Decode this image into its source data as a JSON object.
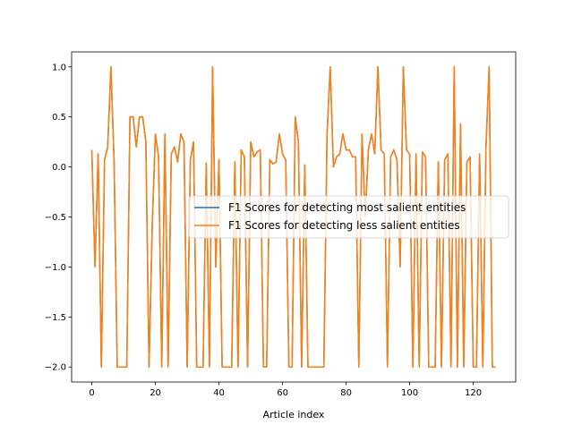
{
  "chart_data": {
    "type": "line",
    "title": "",
    "xlabel": "Article index",
    "ylabel": "",
    "xlim": [
      -6.35,
      133.35
    ],
    "ylim": [
      -2.15,
      1.15
    ],
    "xticks": [
      0,
      20,
      40,
      60,
      80,
      100,
      120
    ],
    "yticks": [
      -2.0,
      -1.5,
      -1.0,
      -0.5,
      0.0,
      0.5,
      1.0
    ],
    "ytick_labels": [
      "−2.0",
      "−1.5",
      "−1.0",
      "−0.5",
      "0.0",
      "0.5",
      "1.0"
    ],
    "grid": false,
    "legend_position": "center-right",
    "x": [
      0,
      1,
      2,
      3,
      4,
      5,
      6,
      7,
      8,
      9,
      10,
      11,
      12,
      13,
      14,
      15,
      16,
      17,
      18,
      19,
      20,
      21,
      22,
      23,
      24,
      25,
      26,
      27,
      28,
      29,
      30,
      31,
      32,
      33,
      34,
      35,
      36,
      37,
      38,
      39,
      40,
      41,
      42,
      43,
      44,
      45,
      46,
      47,
      48,
      49,
      50,
      51,
      52,
      53,
      54,
      55,
      56,
      57,
      58,
      59,
      60,
      61,
      62,
      63,
      64,
      65,
      66,
      67,
      68,
      69,
      70,
      71,
      72,
      73,
      74,
      75,
      76,
      77,
      78,
      79,
      80,
      81,
      82,
      83,
      84,
      85,
      86,
      87,
      88,
      89,
      90,
      91,
      92,
      93,
      94,
      95,
      96,
      97,
      98,
      99,
      100,
      101,
      102,
      103,
      104,
      105,
      106,
      107,
      108,
      109,
      110,
      111,
      112,
      113,
      114,
      115,
      116,
      117,
      118,
      119,
      120,
      121,
      122,
      123,
      124,
      125,
      126,
      127
    ],
    "series": [
      {
        "name": "F1 Scores for detecting most salient entities",
        "color": "#1f77b4",
        "values": [
          0.17,
          -1.0,
          0.13,
          -2.0,
          0.07,
          0.2,
          1.0,
          0.07,
          -2.0,
          -2.0,
          -2.0,
          -2.0,
          0.5,
          0.5,
          0.2,
          0.5,
          0.5,
          0.25,
          -2.0,
          -0.6,
          0.33,
          0.1,
          -2.0,
          0.33,
          -2.0,
          0.13,
          0.2,
          0.05,
          0.33,
          0.25,
          -2.0,
          0.07,
          0.25,
          -2.0,
          -2.0,
          -2.0,
          0.04,
          -2.0,
          1.0,
          -1.0,
          0.07,
          -2.0,
          -2.0,
          -2.0,
          -2.0,
          0.05,
          -2.0,
          0.17,
          0.1,
          -2.0,
          0.25,
          0.1,
          0.15,
          0.17,
          -2.0,
          -2.0,
          0.07,
          0.03,
          0.05,
          0.33,
          0.13,
          0.07,
          -2.0,
          -2.0,
          0.5,
          0.25,
          -2.0,
          0.02,
          -2.0,
          -2.0,
          -2.0,
          -2.0,
          -2.0,
          -2.0,
          0.33,
          1.0,
          0.0,
          0.1,
          0.13,
          0.33,
          0.17,
          0.17,
          0.1,
          0.1,
          -2.0,
          0.33,
          -0.5,
          0.17,
          0.33,
          0.13,
          1.0,
          0.17,
          0.13,
          -2.0,
          0.1,
          0.17,
          0.07,
          -1.0,
          1.0,
          0.17,
          0.13,
          -2.0,
          0.13,
          -2.0,
          0.15,
          0.1,
          -2.0,
          -2.0,
          -2.0,
          0.05,
          -2.0,
          0.07,
          0.13,
          -2.0,
          1.0,
          -2.0,
          0.43,
          -2.0,
          0.05,
          0.1,
          -2.0,
          -2.0,
          0.13,
          -2.0,
          0.2,
          1.0,
          -2.0,
          -2.0
        ]
      },
      {
        "name": "F1 Scores for detecting less salient entities",
        "color": "#ff7f0e",
        "values": [
          0.17,
          -1.0,
          0.13,
          -2.0,
          0.07,
          0.2,
          1.0,
          0.07,
          -2.0,
          -2.0,
          -2.0,
          -2.0,
          0.5,
          0.5,
          0.2,
          0.5,
          0.5,
          0.25,
          -2.0,
          -0.6,
          0.33,
          0.1,
          -2.0,
          0.33,
          -2.0,
          0.13,
          0.2,
          0.05,
          0.33,
          0.25,
          -2.0,
          0.07,
          0.25,
          -2.0,
          -2.0,
          -2.0,
          0.04,
          -2.0,
          1.0,
          -1.0,
          0.07,
          -2.0,
          -2.0,
          -2.0,
          -2.0,
          0.05,
          -2.0,
          0.17,
          0.1,
          -2.0,
          0.25,
          0.1,
          0.15,
          0.17,
          -2.0,
          -2.0,
          0.07,
          0.03,
          0.05,
          0.33,
          0.13,
          0.07,
          -2.0,
          -2.0,
          0.5,
          0.25,
          -2.0,
          0.02,
          -2.0,
          -2.0,
          -2.0,
          -2.0,
          -2.0,
          -2.0,
          0.33,
          1.0,
          0.0,
          0.1,
          0.13,
          0.33,
          0.17,
          0.17,
          0.1,
          0.1,
          -2.0,
          0.33,
          -0.5,
          0.17,
          0.33,
          0.13,
          1.0,
          0.17,
          0.13,
          -2.0,
          0.1,
          0.17,
          0.07,
          -1.0,
          1.0,
          0.17,
          0.13,
          -2.0,
          0.13,
          -2.0,
          0.15,
          0.1,
          -2.0,
          -2.0,
          -2.0,
          0.05,
          -2.0,
          0.07,
          0.13,
          -2.0,
          1.0,
          -2.0,
          0.43,
          -2.0,
          0.05,
          0.1,
          -2.0,
          -2.0,
          0.13,
          -2.0,
          0.2,
          1.0,
          -2.0,
          -2.0
        ]
      }
    ]
  }
}
